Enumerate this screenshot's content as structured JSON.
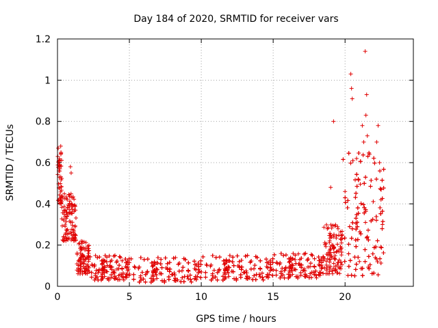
{
  "chart_data": {
    "type": "scatter",
    "title": "Day 184 of 2020, SRMTID for receiver vars",
    "xlabel": "GPS time / hours",
    "ylabel": "SRMTID / TECUs",
    "xlim": [
      0,
      24.75
    ],
    "ylim": [
      0,
      1.2
    ],
    "xticks": [
      0,
      5,
      10,
      15,
      20
    ],
    "xtick_labels": [
      "0",
      "5",
      "10",
      "15",
      "20"
    ],
    "yticks": [
      0,
      0.2,
      0.4,
      0.6,
      0.8,
      1.0,
      1.2
    ],
    "ytick_labels": [
      "0",
      "0.2",
      "0.4",
      "0.6",
      "0.8",
      "1",
      "1.2"
    ],
    "grid": true,
    "marker": "+",
    "color": "#e00000",
    "series": [
      {
        "name": "SRMTID",
        "segments": [
          {
            "x_start": 0.0,
            "x_end": 0.3,
            "y_low": 0.4,
            "y_high": 0.68,
            "count": 45
          },
          {
            "x_start": 0.3,
            "x_end": 1.3,
            "y_low": 0.22,
            "y_high": 0.45,
            "count": 110
          },
          {
            "x_start": 1.3,
            "x_end": 2.2,
            "y_low": 0.06,
            "y_high": 0.22,
            "count": 90
          },
          {
            "x_start": 2.2,
            "x_end": 5.0,
            "y_low": 0.03,
            "y_high": 0.15,
            "count": 260
          },
          {
            "x_start": 5.0,
            "x_end": 10.0,
            "y_low": 0.02,
            "y_high": 0.14,
            "count": 420
          },
          {
            "x_start": 10.0,
            "x_end": 15.0,
            "y_low": 0.03,
            "y_high": 0.15,
            "count": 420
          },
          {
            "x_start": 15.0,
            "x_end": 18.5,
            "y_low": 0.04,
            "y_high": 0.16,
            "count": 300
          },
          {
            "x_start": 18.5,
            "x_end": 19.8,
            "y_low": 0.06,
            "y_high": 0.3,
            "count": 110
          },
          {
            "x_start": 19.8,
            "x_end": 22.7,
            "y_low": 0.05,
            "y_high": 0.65,
            "count": 330
          }
        ],
        "points": [
          {
            "x": 0.05,
            "y": 0.67
          },
          {
            "x": 0.02,
            "y": 0.63
          },
          {
            "x": 0.1,
            "y": 0.56
          },
          {
            "x": 0.9,
            "y": 0.58
          },
          {
            "x": 0.95,
            "y": 0.55
          },
          {
            "x": 19.2,
            "y": 0.8
          },
          {
            "x": 20.4,
            "y": 1.03
          },
          {
            "x": 20.45,
            "y": 0.96
          },
          {
            "x": 20.5,
            "y": 0.91
          },
          {
            "x": 21.4,
            "y": 1.14
          },
          {
            "x": 21.5,
            "y": 0.93
          },
          {
            "x": 21.45,
            "y": 0.83
          },
          {
            "x": 21.2,
            "y": 0.78
          },
          {
            "x": 22.3,
            "y": 0.78
          },
          {
            "x": 21.55,
            "y": 0.73
          },
          {
            "x": 22.2,
            "y": 0.7
          },
          {
            "x": 21.3,
            "y": 0.7
          },
          {
            "x": 20.8,
            "y": 0.62
          },
          {
            "x": 21.7,
            "y": 0.64
          },
          {
            "x": 22.4,
            "y": 0.6
          },
          {
            "x": 19.0,
            "y": 0.48
          },
          {
            "x": 20.0,
            "y": 0.46
          },
          {
            "x": 22.5,
            "y": 0.42
          },
          {
            "x": 22.6,
            "y": 0.3
          },
          {
            "x": 22.1,
            "y": 0.14
          },
          {
            "x": 21.0,
            "y": 0.12
          }
        ]
      }
    ]
  }
}
